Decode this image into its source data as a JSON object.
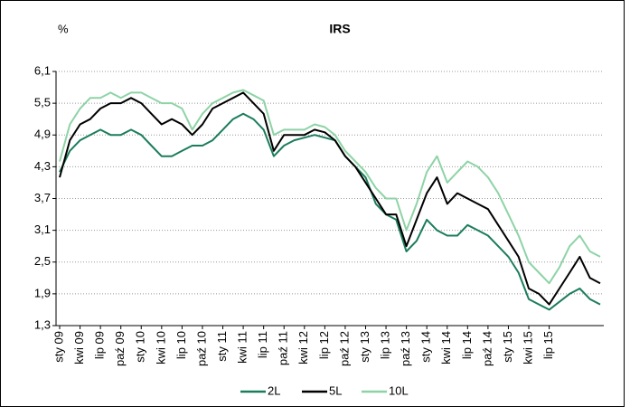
{
  "chart_data": {
    "type": "line",
    "title": "IRS",
    "y_label": "%",
    "categories": [
      "sty 09",
      null,
      "kwi 09",
      null,
      "lip 09",
      null,
      "paź 09",
      null,
      "sty 10",
      null,
      "kwi 10",
      null,
      "lip 10",
      null,
      "paź 10",
      null,
      "sty 11",
      null,
      "kwi 11",
      null,
      "lip 11",
      null,
      "paź 11",
      null,
      "kwi 12",
      null,
      "lip 12",
      null,
      "paź 12",
      null,
      "sty 13",
      null,
      "lip 13",
      null,
      "paź 13",
      null,
      "sty 14",
      null,
      "kwi 14",
      null,
      "lip 14",
      null,
      "paź 14",
      null,
      "sty 15",
      null,
      "kwi 15",
      null,
      "lip 15",
      null,
      null,
      null,
      null,
      null
    ],
    "series": [
      {
        "name": "2L",
        "color": "#1b7d5b",
        "values": [
          4.2,
          4.6,
          4.8,
          4.9,
          5.0,
          4.9,
          4.9,
          5.0,
          4.9,
          4.7,
          4.5,
          4.5,
          4.6,
          4.7,
          4.7,
          4.8,
          5.0,
          5.2,
          5.3,
          5.2,
          5.0,
          4.5,
          4.7,
          4.8,
          4.85,
          4.9,
          4.85,
          4.8,
          4.5,
          4.3,
          4.1,
          3.6,
          3.4,
          3.3,
          2.7,
          2.9,
          3.3,
          3.1,
          3.0,
          3.0,
          3.2,
          3.1,
          3.0,
          2.8,
          2.6,
          2.3,
          1.8,
          1.7,
          1.6,
          1.75,
          1.9,
          2.0,
          1.8,
          1.7
        ]
      },
      {
        "name": "5L",
        "color": "#000000",
        "values": [
          4.1,
          4.8,
          5.1,
          5.2,
          5.4,
          5.5,
          5.5,
          5.6,
          5.5,
          5.3,
          5.1,
          5.2,
          5.1,
          4.9,
          5.1,
          5.4,
          5.5,
          5.6,
          5.7,
          5.5,
          5.3,
          4.6,
          4.9,
          4.9,
          4.9,
          5.0,
          4.95,
          4.8,
          4.5,
          4.3,
          4.0,
          3.7,
          3.4,
          3.4,
          2.8,
          3.3,
          3.8,
          4.1,
          3.6,
          3.8,
          3.7,
          3.6,
          3.5,
          3.2,
          2.9,
          2.6,
          2.0,
          1.9,
          1.7,
          2.0,
          2.3,
          2.6,
          2.2,
          2.1
        ]
      },
      {
        "name": "10L",
        "color": "#8ed3a6",
        "values": [
          4.4,
          5.1,
          5.4,
          5.6,
          5.6,
          5.7,
          5.6,
          5.7,
          5.7,
          5.6,
          5.5,
          5.5,
          5.4,
          5.0,
          5.3,
          5.5,
          5.6,
          5.7,
          5.75,
          5.65,
          5.55,
          4.9,
          5.0,
          5.0,
          5.0,
          5.1,
          5.05,
          4.9,
          4.6,
          4.4,
          4.2,
          3.9,
          3.7,
          3.7,
          3.1,
          3.6,
          4.2,
          4.5,
          4.0,
          4.2,
          4.4,
          4.3,
          4.1,
          3.8,
          3.4,
          3.0,
          2.5,
          2.3,
          2.1,
          2.4,
          2.8,
          3.0,
          2.7,
          2.6
        ]
      }
    ],
    "ylim": [
      1.3,
      6.1
    ],
    "yticks": [
      {
        "value": 1.3,
        "label": "1,3"
      },
      {
        "value": 1.9,
        "label": "1,9"
      },
      {
        "value": 2.5,
        "label": "2,5"
      },
      {
        "value": 3.1,
        "label": "3,1"
      },
      {
        "value": 3.7,
        "label": "3,7"
      },
      {
        "value": 4.3,
        "label": "4,3"
      },
      {
        "value": 4.9,
        "label": "4,9"
      },
      {
        "value": 5.5,
        "label": "5,5"
      },
      {
        "value": 6.1,
        "label": "6,1"
      }
    ],
    "grid": true,
    "legend": "bottom"
  }
}
